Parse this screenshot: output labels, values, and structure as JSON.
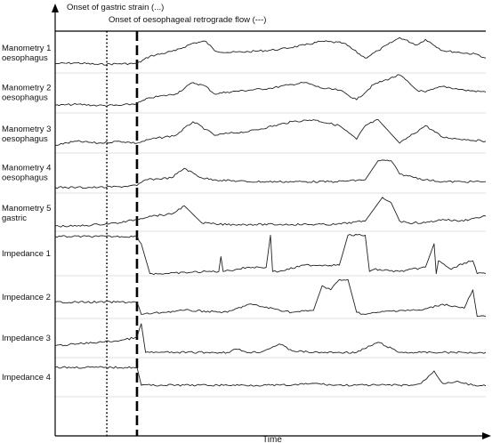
{
  "chart_data": {
    "type": "line",
    "title": "",
    "xlabel": "Time",
    "ylabel": "",
    "grid": "horizontal separators between traces",
    "legend": "none",
    "annotations": {
      "gastric_strain": "Onset of gastric strain (...)",
      "retrograde_flow": "Onset of oesophageal retrograde flow (---)"
    },
    "xlim": [
      0,
      100
    ],
    "event_times": {
      "gastric_strain": 12,
      "retrograde_flow": 19
    },
    "series": [
      {
        "name": "Manometry 1\noesophagus",
        "x": [
          0,
          5,
          10,
          15,
          19,
          22,
          28,
          32,
          35,
          37,
          40,
          45,
          52,
          58,
          62,
          67,
          72,
          75,
          80,
          84,
          86,
          90,
          94,
          98,
          100
        ],
        "y": [
          0.2,
          0.22,
          0.18,
          0.2,
          0.2,
          0.4,
          0.55,
          0.75,
          0.8,
          0.55,
          0.5,
          0.52,
          0.58,
          0.7,
          0.8,
          0.75,
          0.35,
          0.55,
          0.9,
          0.7,
          0.85,
          0.55,
          0.5,
          0.45,
          0.35
        ]
      },
      {
        "name": "Manometry 2\noesophagus",
        "x": [
          0,
          5,
          10,
          15,
          19,
          22,
          28,
          32,
          35,
          37,
          40,
          50,
          55,
          58,
          62,
          66,
          70,
          74,
          80,
          84,
          86,
          90,
          95,
          100
        ],
        "y": [
          0.15,
          0.18,
          0.15,
          0.15,
          0.2,
          0.35,
          0.45,
          0.75,
          0.65,
          0.45,
          0.5,
          0.6,
          0.7,
          0.75,
          0.6,
          0.55,
          0.3,
          0.7,
          0.95,
          0.55,
          0.5,
          0.65,
          0.55,
          0.5
        ]
      },
      {
        "name": "Manometry 3\noesophagus",
        "x": [
          0,
          5,
          10,
          15,
          19,
          22,
          28,
          32,
          35,
          37,
          40,
          45,
          55,
          60,
          66,
          70,
          72,
          75,
          80,
          86,
          90,
          95,
          100
        ],
        "y": [
          0.2,
          0.3,
          0.25,
          0.3,
          0.25,
          0.35,
          0.45,
          0.8,
          0.6,
          0.45,
          0.5,
          0.55,
          0.8,
          0.85,
          0.7,
          0.35,
          0.7,
          0.85,
          0.25,
          0.7,
          0.4,
          0.35,
          0.3
        ]
      },
      {
        "name": "Manometry 4\noesophagus",
        "x": [
          0,
          5,
          10,
          15,
          19,
          21,
          27,
          30,
          34,
          37,
          45,
          55,
          65,
          72,
          75,
          78,
          80,
          82,
          86,
          90,
          95,
          100
        ],
        "y": [
          0.1,
          0.1,
          0.1,
          0.12,
          0.15,
          0.3,
          0.35,
          0.6,
          0.35,
          0.3,
          0.25,
          0.25,
          0.25,
          0.3,
          0.8,
          0.8,
          0.45,
          0.4,
          0.3,
          0.25,
          0.25,
          0.25
        ]
      },
      {
        "name": "Manometry 5\ngastric",
        "x": [
          0,
          5,
          10,
          15,
          19,
          22,
          27,
          30,
          34,
          38,
          45,
          55,
          65,
          72,
          76,
          78,
          80,
          82,
          86,
          90,
          94,
          98,
          100
        ],
        "y": [
          0.1,
          0.1,
          0.15,
          0.2,
          0.3,
          0.4,
          0.45,
          0.7,
          0.2,
          0.15,
          0.15,
          0.15,
          0.15,
          0.25,
          0.95,
          0.8,
          0.25,
          0.2,
          0.2,
          0.3,
          0.25,
          0.35,
          0.4
        ]
      },
      {
        "name": "Impedance 1",
        "x": [
          0,
          10,
          19,
          20,
          22,
          26,
          35,
          38,
          38.5,
          39,
          45,
          49,
          50,
          50.5,
          52,
          58,
          66,
          68,
          72,
          73,
          74,
          80,
          86,
          88,
          88.5,
          89,
          92,
          95,
          97,
          98,
          100
        ],
        "y": [
          0.92,
          0.92,
          0.92,
          0.75,
          0.05,
          0.05,
          0.1,
          0.1,
          0.45,
          0.1,
          0.2,
          0.2,
          0.95,
          0.1,
          0.1,
          0.25,
          0.25,
          0.95,
          0.95,
          0.1,
          0.15,
          0.1,
          0.2,
          0.75,
          0.05,
          0.35,
          0.15,
          0.3,
          0.35,
          0.05,
          0.05
        ]
      },
      {
        "name": "Impedance 2",
        "x": [
          0,
          10,
          19,
          20,
          25,
          30,
          40,
          45,
          55,
          60,
          62,
          64,
          66,
          68,
          70,
          72,
          75,
          80,
          85,
          90,
          95,
          97,
          98,
          100
        ],
        "y": [
          0.4,
          0.4,
          0.4,
          0.1,
          0.15,
          0.2,
          0.15,
          0.35,
          0.15,
          0.2,
          0.8,
          0.7,
          0.95,
          0.95,
          0.15,
          0.1,
          0.15,
          0.2,
          0.2,
          0.35,
          0.25,
          0.7,
          0.05,
          0.05
        ]
      },
      {
        "name": "Impedance 3",
        "x": [
          0,
          5,
          10,
          15,
          19,
          20,
          21,
          28,
          35,
          40,
          42,
          45,
          48,
          52,
          55,
          60,
          65,
          70,
          75,
          80,
          85,
          90,
          95,
          100
        ],
        "y": [
          0.3,
          0.35,
          0.4,
          0.45,
          0.55,
          0.95,
          0.1,
          0.1,
          0.1,
          0.1,
          0.2,
          0.1,
          0.12,
          0.35,
          0.15,
          0.1,
          0.1,
          0.1,
          0.4,
          0.1,
          0.1,
          0.1,
          0.1,
          0.1
        ]
      },
      {
        "name": "Impedance 4",
        "x": [
          0,
          10,
          19,
          20,
          30,
          40,
          50,
          55,
          60,
          65,
          70,
          75,
          80,
          83,
          85,
          88,
          90,
          93,
          95,
          97,
          100
        ],
        "y": [
          0.8,
          0.8,
          0.8,
          0.3,
          0.3,
          0.3,
          0.3,
          0.3,
          0.35,
          0.3,
          0.3,
          0.3,
          0.3,
          0.3,
          0.35,
          0.7,
          0.35,
          0.4,
          0.35,
          0.3,
          0.28
        ]
      }
    ]
  }
}
